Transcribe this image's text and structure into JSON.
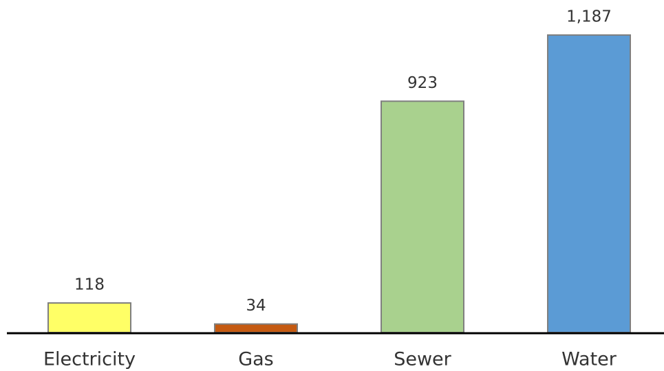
{
  "chart_data": {
    "type": "bar",
    "categories": [
      "Electricity",
      "Gas",
      "Sewer",
      "Water"
    ],
    "values": [
      118,
      34,
      923,
      1187
    ],
    "value_labels": [
      "118",
      "34",
      "923",
      "1,187"
    ],
    "colors": [
      "#ffff66",
      "#c55a11",
      "#a9d18e",
      "#5b9bd5"
    ]
  }
}
